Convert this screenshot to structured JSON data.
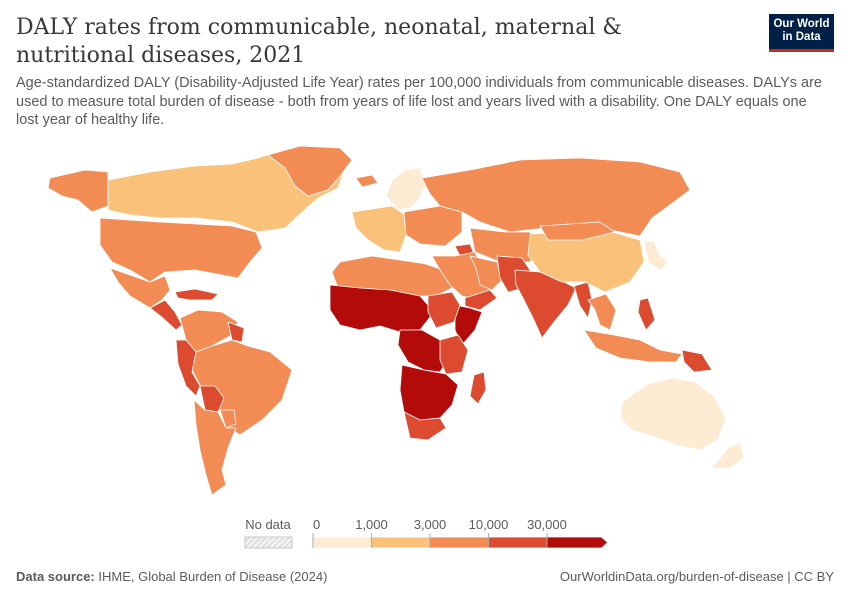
{
  "header": {
    "title": "DALY rates from communicable, neonatal, maternal & nutritional diseases, 2021",
    "subtitle": "Age-standardized DALY (Disability-Adjusted Life Year) rates per 100,000 individuals from communicable diseases. DALYs are used to measure total burden of disease - both from years of life lost and years lived with a disability. One DALY equals one lost year of healthy life."
  },
  "logo": {
    "line1": "Our World",
    "line2": "in Data"
  },
  "footer": {
    "source_label": "Data source:",
    "source_text": "IHME, Global Burden of Disease (2024)",
    "url_text": "OurWorldinData.org/burden-of-disease | CC BY"
  },
  "colors": {
    "bin1": "#fdebd3",
    "bin2": "#f9c17a",
    "bin3": "#f38b55",
    "bin4": "#dc4a30",
    "bin5": "#b30a0a",
    "no_data": "#e3e3e3",
    "border": "#ffffff"
  },
  "chart_data": {
    "type": "choropleth",
    "title": "DALY rates from communicable, neonatal, maternal & nutritional diseases, 2021",
    "unit": "DALYs per 100,000 individuals (age-standardized)",
    "legend": {
      "no_data_label": "No data",
      "breaks": [
        "0",
        "1,000",
        "3,000",
        "10,000",
        "30,000"
      ],
      "bins": [
        {
          "from": 0,
          "to": 1000,
          "color": "#fdebd3"
        },
        {
          "from": 1000,
          "to": 3000,
          "color": "#f9c17a"
        },
        {
          "from": 3000,
          "to": 10000,
          "color": "#f38b55"
        },
        {
          "from": 10000,
          "to": 30000,
          "color": "#dc4a30"
        },
        {
          "from": 30000,
          "to": null,
          "color": "#b30a0a"
        }
      ]
    },
    "regions": [
      {
        "name": "Canada",
        "bin": 1
      },
      {
        "name": "Alaska",
        "bin": 2
      },
      {
        "name": "Greenland",
        "bin": 2
      },
      {
        "name": "United States",
        "bin": 2
      },
      {
        "name": "Mexico",
        "bin": 2
      },
      {
        "name": "Central America",
        "bin": 3
      },
      {
        "name": "Caribbean",
        "bin": 3
      },
      {
        "name": "Colombia & Venezuela",
        "bin": 2
      },
      {
        "name": "Guyana",
        "bin": 3
      },
      {
        "name": "Brazil",
        "bin": 2
      },
      {
        "name": "Peru",
        "bin": 3
      },
      {
        "name": "Bolivia",
        "bin": 3
      },
      {
        "name": "Paraguay",
        "bin": 2
      },
      {
        "name": "Argentina & Chile",
        "bin": 2
      },
      {
        "name": "Iceland",
        "bin": 2
      },
      {
        "name": "Scandinavia",
        "bin": 0
      },
      {
        "name": "Western Europe",
        "bin": 1
      },
      {
        "name": "Eastern Europe",
        "bin": 2
      },
      {
        "name": "Russia",
        "bin": 2
      },
      {
        "name": "Central Asia",
        "bin": 2
      },
      {
        "name": "Caucasus",
        "bin": 3
      },
      {
        "name": "North Africa",
        "bin": 2
      },
      {
        "name": "Middle East",
        "bin": 2
      },
      {
        "name": "Iran",
        "bin": 2
      },
      {
        "name": "Yemen & Oman",
        "bin": 3
      },
      {
        "name": "Pakistan & Afghanistan",
        "bin": 3
      },
      {
        "name": "India",
        "bin": 3
      },
      {
        "name": "Myanmar",
        "bin": 3
      },
      {
        "name": "China",
        "bin": 1
      },
      {
        "name": "Mongolia",
        "bin": 2
      },
      {
        "name": "Japan & Korea",
        "bin": 0
      },
      {
        "name": "Southeast Asia",
        "bin": 2
      },
      {
        "name": "Philippines",
        "bin": 3
      },
      {
        "name": "Indonesia",
        "bin": 2
      },
      {
        "name": "Papua New Guinea",
        "bin": 3
      },
      {
        "name": "Australia",
        "bin": 0
      },
      {
        "name": "New Zealand",
        "bin": 0
      },
      {
        "name": "West Africa Sahel",
        "bin": 4
      },
      {
        "name": "Central Africa",
        "bin": 4
      },
      {
        "name": "Horn of Africa",
        "bin": 4
      },
      {
        "name": "Sudan",
        "bin": 3
      },
      {
        "name": "East Africa",
        "bin": 3
      },
      {
        "name": "Southern Africa inland",
        "bin": 4
      },
      {
        "name": "South Africa",
        "bin": 3
      },
      {
        "name": "Madagascar",
        "bin": 3
      }
    ]
  }
}
